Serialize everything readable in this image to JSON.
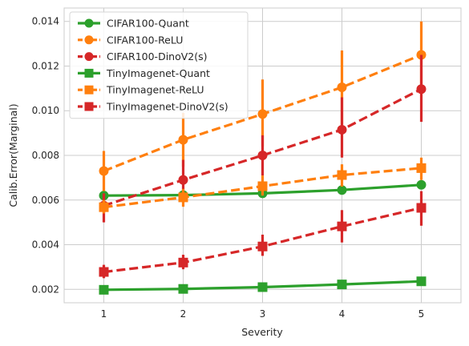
{
  "chart_data": {
    "type": "line",
    "title": "",
    "xlabel": "Severity",
    "ylabel": "Calib.Error(Marginal)",
    "x": [
      1,
      2,
      3,
      4,
      5
    ],
    "x_tick_labels": [
      "1",
      "2",
      "3",
      "4",
      "5"
    ],
    "xlim": [
      0.5,
      5.5
    ],
    "ylim": [
      0.0014,
      0.0146
    ],
    "y_ticks": [
      0.002,
      0.004,
      0.006,
      0.008,
      0.01,
      0.012,
      0.014
    ],
    "y_tick_labels": [
      "0.002",
      "0.004",
      "0.006",
      "0.008",
      "0.010",
      "0.012",
      "0.014"
    ],
    "grid": true,
    "legend_position": "top-left",
    "series": [
      {
        "name": "CIFAR100-Quant",
        "color": "#2ca02c",
        "marker": "circle",
        "dashed": false,
        "values": [
          0.0062,
          0.00622,
          0.0063,
          0.00645,
          0.00668
        ],
        "err_low": [
          0.00613,
          0.00615,
          0.00622,
          0.0063,
          0.00655
        ],
        "err_high": [
          0.00627,
          0.00629,
          0.00638,
          0.0066,
          0.00681
        ]
      },
      {
        "name": "CIFAR100-ReLU",
        "color": "#ff7f0e",
        "marker": "circle",
        "dashed": true,
        "values": [
          0.0073,
          0.0087,
          0.00985,
          0.01105,
          0.0125
        ],
        "err_low": [
          0.0064,
          0.0075,
          0.0084,
          0.0094,
          0.011
        ],
        "err_high": [
          0.0082,
          0.0099,
          0.0114,
          0.0127,
          0.014
        ]
      },
      {
        "name": "CIFAR100-DinoV2(s)",
        "color": "#d62728",
        "marker": "circle",
        "dashed": true,
        "values": [
          0.00575,
          0.0069,
          0.008,
          0.00915,
          0.01097
        ],
        "err_low": [
          0.005,
          0.0061,
          0.0071,
          0.0079,
          0.0095
        ],
        "err_high": [
          0.0063,
          0.0078,
          0.0089,
          0.0106,
          0.0125
        ]
      },
      {
        "name": "TinyImagenet-Quant",
        "color": "#2ca02c",
        "marker": "square",
        "dashed": false,
        "values": [
          0.00198,
          0.00202,
          0.0021,
          0.00222,
          0.00236
        ],
        "err_low": [
          0.00194,
          0.00198,
          0.00205,
          0.00216,
          0.0023
        ],
        "err_high": [
          0.00202,
          0.00206,
          0.00215,
          0.00228,
          0.00242
        ]
      },
      {
        "name": "TinyImagenet-ReLU",
        "color": "#ff7f0e",
        "marker": "square",
        "dashed": true,
        "values": [
          0.00568,
          0.00612,
          0.00662,
          0.00712,
          0.00743
        ],
        "err_low": [
          0.0054,
          0.0057,
          0.0062,
          0.0066,
          0.0069
        ],
        "err_high": [
          0.006,
          0.0065,
          0.0071,
          0.0076,
          0.0079
        ]
      },
      {
        "name": "TinyImagenet-DinoV2(s)",
        "color": "#d62728",
        "marker": "square",
        "dashed": true,
        "values": [
          0.00278,
          0.0032,
          0.00392,
          0.00482,
          0.00565
        ],
        "err_low": [
          0.0025,
          0.0029,
          0.0035,
          0.0041,
          0.00485
        ],
        "err_high": [
          0.0031,
          0.00355,
          0.00445,
          0.00555,
          0.0064
        ]
      }
    ]
  }
}
